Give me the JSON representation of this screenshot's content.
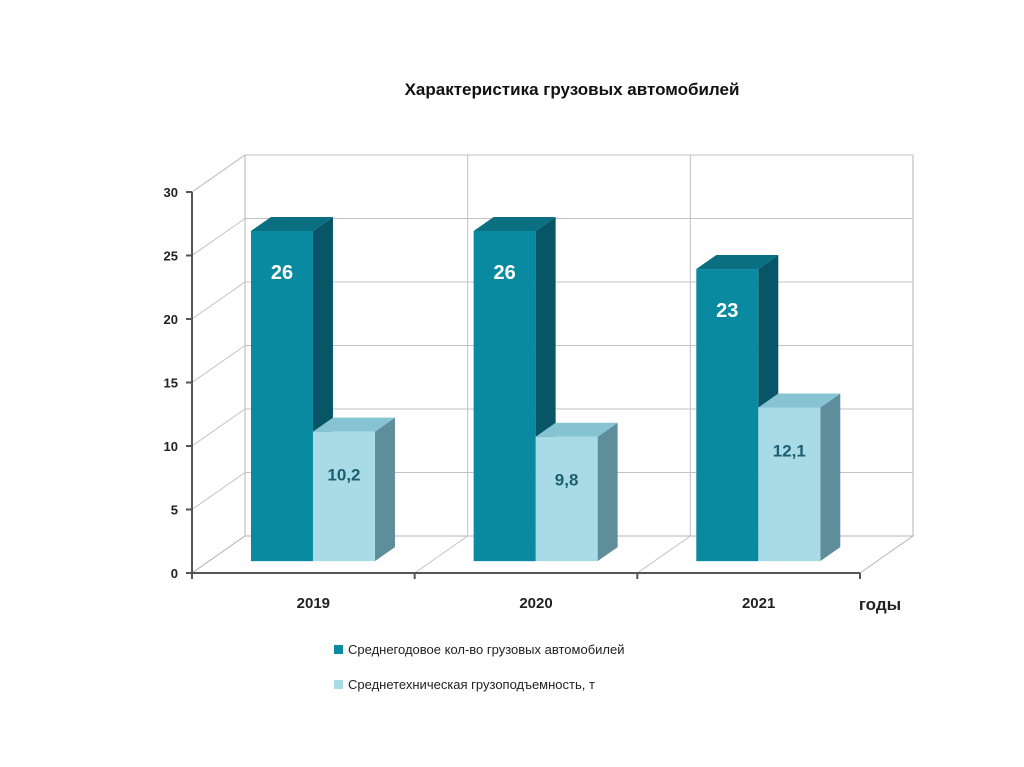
{
  "chart_data": {
    "type": "bar",
    "title": "Характеристика грузовых автомобилей",
    "categories": [
      "2019",
      "2020",
      "2021"
    ],
    "xlabel": "годы",
    "ylabel": "",
    "ylim": [
      0,
      30
    ],
    "yticks": [
      "0",
      "5",
      "10",
      "15",
      "20",
      "25",
      "30"
    ],
    "grid": true,
    "three_d": true,
    "legend_position": "bottom",
    "series": [
      {
        "name": "Среднегодовое кол-во грузовых автомобилей",
        "values": [
          26,
          26,
          23
        ],
        "labels": [
          "26",
          "26",
          "23"
        ],
        "color": "#0a8aa0"
      },
      {
        "name": "Среднетехническая грузоподъемность, т",
        "values": [
          10.2,
          9.8,
          12.1
        ],
        "labels": [
          "10,2",
          "9,8",
          "12,1"
        ],
        "color": "#a8dbe6"
      }
    ]
  }
}
